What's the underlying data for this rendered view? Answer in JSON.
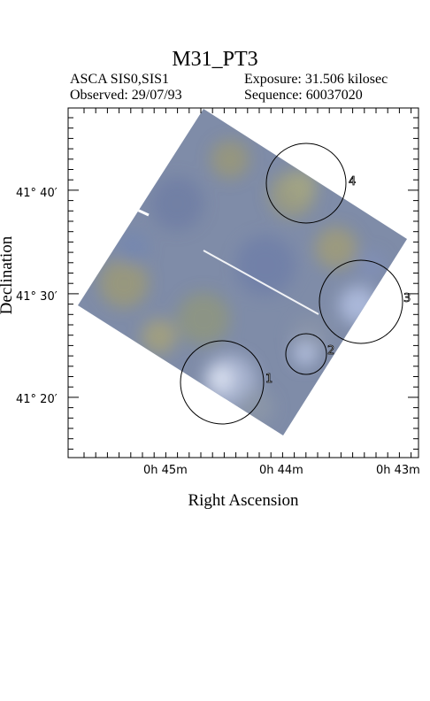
{
  "header": {
    "title": "M31_PT3",
    "instrument": "ASCA SIS0,SIS1",
    "observed": "Observed: 29/07/93",
    "exposure": "Exposure: 31.506 kilosec",
    "sequence": "Sequence: 60037020"
  },
  "axes": {
    "xlabel": "Right Ascension",
    "ylabel": "Declination",
    "x_ticks": [
      "0h 45m",
      "0h 44m",
      "0h 43m"
    ],
    "y_ticks": [
      "41° 40′",
      "41° 30′",
      "41° 20′"
    ]
  },
  "sources": [
    {
      "label": "1"
    },
    {
      "label": "2"
    },
    {
      "label": "3"
    },
    {
      "label": "4"
    }
  ],
  "colors": {
    "image_fill": "#7d8aa6",
    "image_highlight": "#b8c4e0",
    "image_yellow": "#9b9a74",
    "frame": "#000000"
  }
}
